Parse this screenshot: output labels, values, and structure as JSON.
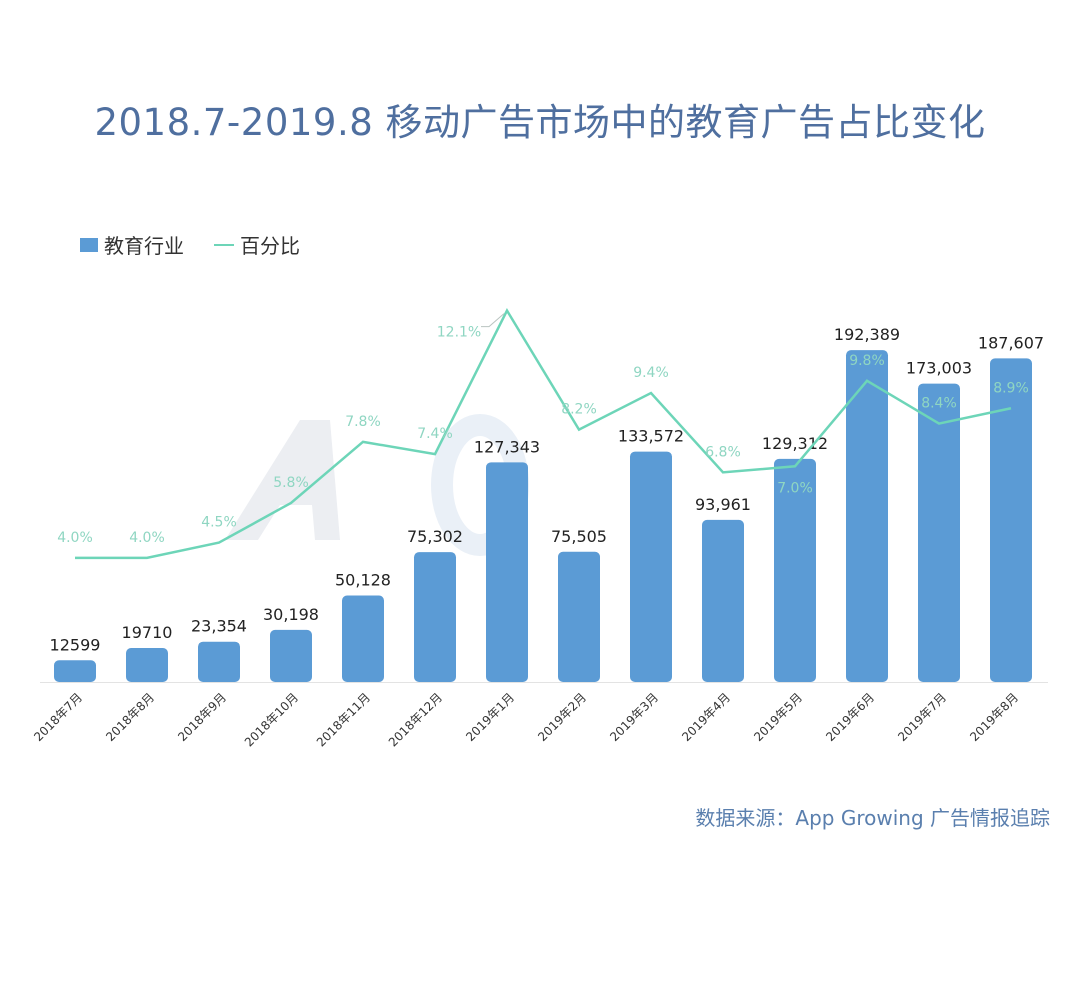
{
  "title": "2018.7-2019.8 移动广告市场中的教育广告占比变化",
  "legend": {
    "bar": "教育行业",
    "line": "百分比"
  },
  "source": "数据来源：App Growing 广告情报追踪",
  "watermark": "AppGrowing",
  "colors": {
    "bar": "#5b9bd5",
    "line": "#6dd5b8",
    "title": "#4f6f9f"
  },
  "chart_data": {
    "type": "bar+line",
    "title": "2018.7-2019.8 移动广告市场中的教育广告占比变化",
    "categories": [
      "2018年7月",
      "2018年8月",
      "2018年9月",
      "2018年10月",
      "2018年11月",
      "2018年12月",
      "2019年1月",
      "2019年2月",
      "2019年3月",
      "2019年4月",
      "2019年5月",
      "2019年6月",
      "2019年7月",
      "2019年8月"
    ],
    "series": [
      {
        "name": "教育行业",
        "type": "bar",
        "values": [
          12599,
          19710,
          23354,
          30198,
          50128,
          75302,
          127343,
          75505,
          133572,
          93961,
          129312,
          192389,
          173003,
          187607
        ],
        "labels": [
          "12599",
          "19710",
          "23,354",
          "30,198",
          "50,128",
          "75,302",
          "127,343",
          "75,505",
          "133,572",
          "93,961",
          "129,312",
          "192,389",
          "173,003",
          "187,607"
        ]
      },
      {
        "name": "百分比",
        "type": "line",
        "values": [
          4.0,
          4.0,
          4.5,
          5.8,
          7.8,
          7.4,
          12.1,
          8.2,
          9.4,
          6.8,
          7.0,
          9.8,
          8.4,
          8.9
        ],
        "labels": [
          "4.0%",
          "4.0%",
          "4.5%",
          "5.8%",
          "7.8%",
          "7.4%",
          "12.1%",
          "8.2%",
          "9.4%",
          "6.8%",
          "7.0%",
          "9.8%",
          "8.4%",
          "8.9%"
        ]
      }
    ],
    "bar_ylim": [
      0,
      200000
    ],
    "line_ylim": [
      0,
      11.3
    ],
    "grid": false,
    "legend_position": "top-left"
  }
}
